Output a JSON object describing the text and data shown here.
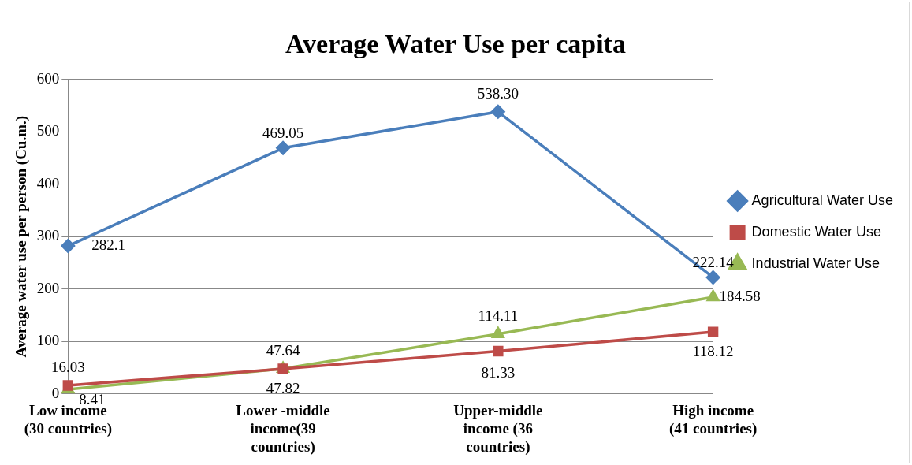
{
  "chart_data": {
    "type": "line",
    "title": "Average Water Use per capita",
    "ylabel": "Average water use per person (Cu.m.)",
    "categories": [
      "Low income (30 countries)",
      "Lower -middle income(39 countries)",
      "Upper-middle income (36 countries)",
      "High income (41 countries)"
    ],
    "series": [
      {
        "name": "Agricultural Water Use",
        "color": "#4a7ebb",
        "marker": "diamond",
        "values": [
          282.1,
          469.05,
          538.3,
          222.14
        ],
        "value_labels": [
          "282.1",
          "469.05",
          "538.30",
          "222.14"
        ]
      },
      {
        "name": "Domestic Water Use",
        "color": "#be4b48",
        "marker": "square",
        "values": [
          16.03,
          47.64,
          81.33,
          118.12
        ],
        "value_labels": [
          "16.03",
          "47.64",
          "81.33",
          "118.12"
        ]
      },
      {
        "name": "Industrial Water Use",
        "color": "#98b954",
        "marker": "triangle",
        "values": [
          8.41,
          47.82,
          114.11,
          184.58
        ],
        "value_labels": [
          "8.41",
          "47.82",
          "114.11",
          "184.58"
        ]
      }
    ],
    "ylim": [
      0,
      600
    ],
    "yticks": [
      0,
      100,
      200,
      300,
      400,
      500,
      600
    ],
    "grid": "y",
    "legend": "right",
    "line_style": "solid"
  }
}
